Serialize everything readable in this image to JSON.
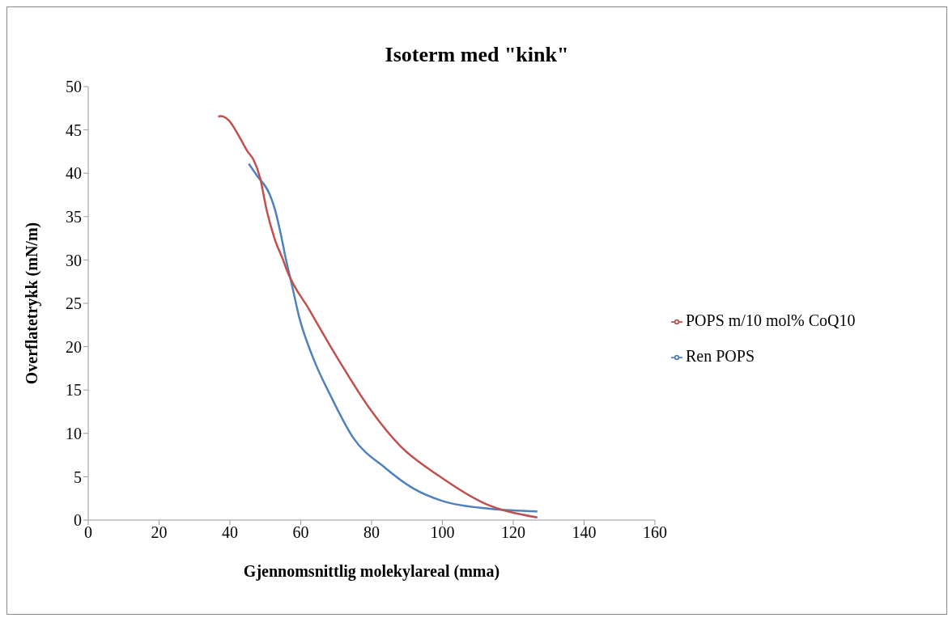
{
  "chart_data": {
    "type": "line",
    "title": "Isoterm med \"kink\"",
    "xlabel": "Gjennomsnittlig molekylareal (mma)",
    "ylabel": "Overflatetrykk (mN/m)",
    "xlim": [
      0,
      160
    ],
    "xticks": [
      0,
      20,
      40,
      60,
      80,
      100,
      120,
      140,
      160
    ],
    "ylim": [
      0,
      50
    ],
    "yticks": [
      0,
      5,
      10,
      15,
      20,
      25,
      30,
      35,
      40,
      45,
      50
    ],
    "grid": false,
    "legend": "right",
    "marker": "none",
    "line_style": "solid",
    "series": [
      {
        "name": "Ren POPS",
        "color": "#4f81bd",
        "x": [
          45.3,
          47.7,
          51.2,
          52.8,
          54.4,
          55.8,
          57.4,
          59.5,
          63.3,
          68.6,
          74.8,
          83.9,
          92,
          100,
          113.4,
          126.8
        ],
        "values": [
          41.1,
          39.7,
          37.6,
          35.7,
          32.9,
          30.1,
          27.3,
          23.5,
          18.9,
          14.2,
          9.5,
          6.0,
          3.6,
          2.2,
          1.3,
          1.0
        ]
      },
      {
        "name": "POPS m/10 mol% CoQ10",
        "color": "#c0504d",
        "x": [
          36.7,
          37.3,
          39.7,
          42.4,
          45,
          46.6,
          48.5,
          50.4,
          52.5,
          55.2,
          56,
          62.5,
          70.5,
          79.4,
          88.2,
          99,
          111.5,
          126.8
        ],
        "values": [
          46.5,
          46.6,
          46.1,
          44.4,
          42.5,
          41.6,
          39.5,
          35.7,
          32.6,
          29.8,
          28.9,
          24.2,
          18.6,
          12.9,
          8.5,
          5.1,
          2.0,
          0.3
        ]
      }
    ]
  }
}
